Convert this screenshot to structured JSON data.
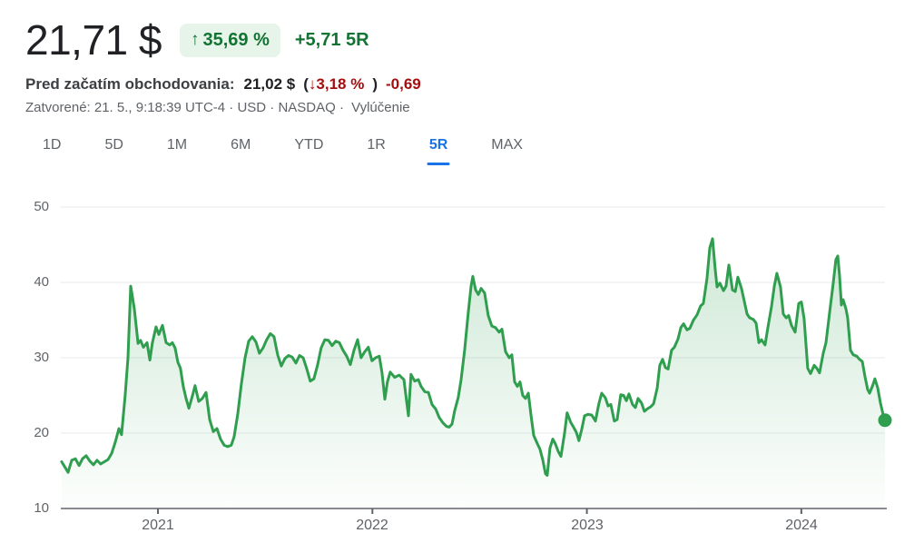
{
  "header": {
    "price": "21,71 $",
    "change_badge": {
      "arrow": "↑",
      "percent": "35,69 %"
    },
    "change_abs": "+5,71 5R",
    "premarket": {
      "label": "Pred začatím obchodovania:",
      "price": "21,02 $",
      "paren_open": "(",
      "arrow": "↓",
      "percent": "3,18 %",
      "paren_close": ")",
      "change": "-0,69"
    },
    "closed_info": "Zatvorené: 21. 5., 9:18:39 UTC-4 · USD · NASDAQ ·",
    "disclaimer": "Vylúčenie"
  },
  "tabs": {
    "items": [
      "1D",
      "5D",
      "1M",
      "6M",
      "YTD",
      "1R",
      "5R",
      "MAX"
    ],
    "active_label": "5R"
  },
  "colors": {
    "accent_blue": "#1a73e8",
    "green_text": "#137333",
    "badge_bg": "#e6f4ea",
    "red_text": "#a50e0e",
    "primary_text": "#202124",
    "secondary_text": "#5f6368"
  },
  "chart_data": {
    "type": "area",
    "title": "",
    "xlabel": "",
    "ylabel": "",
    "legend": false,
    "grid": true,
    "line_color": "#2f9e4f",
    "fill_color_rgb": "47,158,79",
    "grid_color": "#e8eaed",
    "axis_color": "#878b8f",
    "tick_color": "#5f6368",
    "ylim": [
      10,
      50
    ],
    "xlim": [
      2020.547,
      2024.39
    ],
    "y_ticks": [
      50,
      40,
      30,
      20,
      10
    ],
    "x_ticks": [
      2021,
      2022,
      2023,
      2024
    ],
    "y_tick_labels": [
      "50",
      "40",
      "30",
      "20",
      "10"
    ],
    "x_tick_labels": [
      "2021",
      "2022",
      "2023",
      "2024"
    ],
    "end_value": 21.71,
    "points": [
      [
        2020.551,
        16.2
      ],
      [
        2020.568,
        15.4
      ],
      [
        2020.581,
        14.8
      ],
      [
        2020.598,
        16.4
      ],
      [
        2020.615,
        16.6
      ],
      [
        2020.632,
        15.7
      ],
      [
        2020.648,
        16.6
      ],
      [
        2020.665,
        17.0
      ],
      [
        2020.682,
        16.3
      ],
      [
        2020.699,
        15.8
      ],
      [
        2020.716,
        16.4
      ],
      [
        2020.733,
        15.9
      ],
      [
        2020.75,
        16.2
      ],
      [
        2020.767,
        16.5
      ],
      [
        2020.784,
        17.3
      ],
      [
        2020.801,
        18.8
      ],
      [
        2020.818,
        20.6
      ],
      [
        2020.83,
        19.8
      ],
      [
        2020.847,
        25.0
      ],
      [
        2020.86,
        30.0
      ],
      [
        2020.873,
        39.5
      ],
      [
        2020.89,
        36.5
      ],
      [
        2020.907,
        31.9
      ],
      [
        2020.919,
        32.3
      ],
      [
        2020.932,
        31.4
      ],
      [
        2020.949,
        32.0
      ],
      [
        2020.962,
        29.7
      ],
      [
        2020.974,
        32.0
      ],
      [
        2020.991,
        34.1
      ],
      [
        2021.004,
        33.1
      ],
      [
        2021.021,
        34.3
      ],
      [
        2021.038,
        32.0
      ],
      [
        2021.055,
        31.7
      ],
      [
        2021.067,
        32.0
      ],
      [
        2021.08,
        31.3
      ],
      [
        2021.093,
        29.4
      ],
      [
        2021.105,
        28.6
      ],
      [
        2021.118,
        26.2
      ],
      [
        2021.131,
        24.6
      ],
      [
        2021.144,
        23.3
      ],
      [
        2021.161,
        25.0
      ],
      [
        2021.173,
        26.3
      ],
      [
        2021.19,
        24.2
      ],
      [
        2021.207,
        24.6
      ],
      [
        2021.224,
        25.4
      ],
      [
        2021.241,
        21.8
      ],
      [
        2021.258,
        20.2
      ],
      [
        2021.275,
        20.6
      ],
      [
        2021.292,
        19.2
      ],
      [
        2021.309,
        18.4
      ],
      [
        2021.325,
        18.2
      ],
      [
        2021.342,
        18.4
      ],
      [
        2021.355,
        19.5
      ],
      [
        2021.372,
        22.5
      ],
      [
        2021.389,
        26.5
      ],
      [
        2021.406,
        30.0
      ],
      [
        2021.423,
        32.2
      ],
      [
        2021.44,
        32.8
      ],
      [
        2021.457,
        32.1
      ],
      [
        2021.473,
        30.6
      ],
      [
        2021.49,
        31.3
      ],
      [
        2021.507,
        32.4
      ],
      [
        2021.524,
        33.2
      ],
      [
        2021.541,
        32.8
      ],
      [
        2021.558,
        30.4
      ],
      [
        2021.575,
        28.9
      ],
      [
        2021.592,
        29.9
      ],
      [
        2021.609,
        30.3
      ],
      [
        2021.626,
        30.1
      ],
      [
        2021.643,
        29.3
      ],
      [
        2021.66,
        30.3
      ],
      [
        2021.677,
        30.0
      ],
      [
        2021.693,
        28.6
      ],
      [
        2021.71,
        26.9
      ],
      [
        2021.727,
        27.2
      ],
      [
        2021.744,
        29.0
      ],
      [
        2021.761,
        31.3
      ],
      [
        2021.778,
        32.4
      ],
      [
        2021.795,
        32.3
      ],
      [
        2021.812,
        31.6
      ],
      [
        2021.829,
        32.2
      ],
      [
        2021.846,
        32.0
      ],
      [
        2021.863,
        31.0
      ],
      [
        2021.88,
        30.2
      ],
      [
        2021.897,
        29.1
      ],
      [
        2021.914,
        31.0
      ],
      [
        2021.931,
        32.4
      ],
      [
        2021.947,
        30.0
      ],
      [
        2021.964,
        30.8
      ],
      [
        2021.981,
        31.4
      ],
      [
        2021.998,
        29.6
      ],
      [
        2022.015,
        30.0
      ],
      [
        2022.032,
        30.2
      ],
      [
        2022.045,
        28.0
      ],
      [
        2022.058,
        24.5
      ],
      [
        2022.07,
        26.8
      ],
      [
        2022.083,
        28.1
      ],
      [
        2022.104,
        27.4
      ],
      [
        2022.125,
        27.7
      ],
      [
        2022.147,
        27.1
      ],
      [
        2022.168,
        22.3
      ],
      [
        2022.18,
        27.8
      ],
      [
        2022.197,
        26.9
      ],
      [
        2022.214,
        27.1
      ],
      [
        2022.227,
        26.2
      ],
      [
        2022.244,
        25.5
      ],
      [
        2022.261,
        25.4
      ],
      [
        2022.278,
        23.8
      ],
      [
        2022.295,
        23.2
      ],
      [
        2022.311,
        22.1
      ],
      [
        2022.328,
        21.4
      ],
      [
        2022.345,
        20.9
      ],
      [
        2022.358,
        20.8
      ],
      [
        2022.371,
        21.2
      ],
      [
        2022.384,
        23.0
      ],
      [
        2022.4,
        24.7
      ],
      [
        2022.413,
        27.0
      ],
      [
        2022.43,
        31.0
      ],
      [
        2022.447,
        36.0
      ],
      [
        2022.46,
        39.5
      ],
      [
        2022.468,
        40.8
      ],
      [
        2022.481,
        39.0
      ],
      [
        2022.494,
        38.4
      ],
      [
        2022.507,
        39.2
      ],
      [
        2022.523,
        38.6
      ],
      [
        2022.54,
        35.6
      ],
      [
        2022.557,
        34.2
      ],
      [
        2022.574,
        34.0
      ],
      [
        2022.591,
        33.4
      ],
      [
        2022.604,
        33.8
      ],
      [
        2022.621,
        30.8
      ],
      [
        2022.638,
        30.0
      ],
      [
        2022.65,
        30.4
      ],
      [
        2022.663,
        26.8
      ],
      [
        2022.676,
        26.2
      ],
      [
        2022.688,
        26.8
      ],
      [
        2022.701,
        25.0
      ],
      [
        2022.714,
        24.6
      ],
      [
        2022.727,
        25.3
      ],
      [
        2022.739,
        22.5
      ],
      [
        2022.752,
        19.7
      ],
      [
        2022.769,
        18.6
      ],
      [
        2022.781,
        17.9
      ],
      [
        2022.794,
        16.5
      ],
      [
        2022.807,
        14.6
      ],
      [
        2022.815,
        14.4
      ],
      [
        2022.828,
        18.0
      ],
      [
        2022.841,
        19.2
      ],
      [
        2022.853,
        18.6
      ],
      [
        2022.866,
        17.6
      ],
      [
        2022.879,
        16.9
      ],
      [
        2022.896,
        20.0
      ],
      [
        2022.908,
        22.7
      ],
      [
        2022.925,
        21.4
      ],
      [
        2022.938,
        20.8
      ],
      [
        2022.951,
        20.1
      ],
      [
        2022.963,
        19.0
      ],
      [
        2022.976,
        20.5
      ],
      [
        2022.989,
        22.3
      ],
      [
        2023.006,
        22.5
      ],
      [
        2023.023,
        22.4
      ],
      [
        2023.04,
        21.6
      ],
      [
        2023.056,
        23.9
      ],
      [
        2023.069,
        25.3
      ],
      [
        2023.086,
        24.7
      ],
      [
        2023.099,
        23.6
      ],
      [
        2023.112,
        23.8
      ],
      [
        2023.128,
        21.6
      ],
      [
        2023.141,
        21.8
      ],
      [
        2023.158,
        25.1
      ],
      [
        2023.171,
        25.0
      ],
      [
        2023.184,
        24.3
      ],
      [
        2023.196,
        25.2
      ],
      [
        2023.213,
        23.8
      ],
      [
        2023.226,
        23.4
      ],
      [
        2023.239,
        24.6
      ],
      [
        2023.255,
        24.0
      ],
      [
        2023.268,
        22.9
      ],
      [
        2023.281,
        23.2
      ],
      [
        2023.298,
        23.5
      ],
      [
        2023.311,
        23.9
      ],
      [
        2023.328,
        26.0
      ],
      [
        2023.34,
        29.0
      ],
      [
        2023.353,
        29.8
      ],
      [
        2023.366,
        28.7
      ],
      [
        2023.379,
        28.5
      ],
      [
        2023.395,
        31.0
      ],
      [
        2023.408,
        31.4
      ],
      [
        2023.425,
        32.5
      ],
      [
        2023.438,
        34.0
      ],
      [
        2023.451,
        34.5
      ],
      [
        2023.467,
        33.7
      ],
      [
        2023.48,
        33.9
      ],
      [
        2023.497,
        35.0
      ],
      [
        2023.514,
        35.7
      ],
      [
        2023.531,
        36.9
      ],
      [
        2023.543,
        37.2
      ],
      [
        2023.56,
        40.5
      ],
      [
        2023.573,
        44.6
      ],
      [
        2023.586,
        45.8
      ],
      [
        2023.599,
        41.6
      ],
      [
        2023.607,
        39.4
      ],
      [
        2023.62,
        39.9
      ],
      [
        2023.637,
        38.9
      ],
      [
        2023.649,
        39.5
      ],
      [
        2023.662,
        42.3
      ],
      [
        2023.679,
        39.0
      ],
      [
        2023.692,
        38.8
      ],
      [
        2023.704,
        40.7
      ],
      [
        2023.721,
        39.2
      ],
      [
        2023.734,
        37.5
      ],
      [
        2023.747,
        35.8
      ],
      [
        2023.759,
        35.3
      ],
      [
        2023.776,
        35.1
      ],
      [
        2023.789,
        34.6
      ],
      [
        2023.802,
        32.0
      ],
      [
        2023.814,
        32.4
      ],
      [
        2023.831,
        31.7
      ],
      [
        2023.844,
        34.0
      ],
      [
        2023.861,
        36.8
      ],
      [
        2023.874,
        39.5
      ],
      [
        2023.886,
        41.2
      ],
      [
        2023.903,
        39.4
      ],
      [
        2023.916,
        35.8
      ],
      [
        2023.929,
        35.3
      ],
      [
        2023.941,
        35.6
      ],
      [
        2023.954,
        34.3
      ],
      [
        2023.971,
        33.4
      ],
      [
        2023.988,
        37.2
      ],
      [
        2024.0,
        37.4
      ],
      [
        2024.013,
        35.2
      ],
      [
        2024.03,
        28.6
      ],
      [
        2024.043,
        27.9
      ],
      [
        2024.06,
        29.0
      ],
      [
        2024.072,
        28.6
      ],
      [
        2024.085,
        28.0
      ],
      [
        2024.102,
        30.6
      ],
      [
        2024.115,
        32.0
      ],
      [
        2024.132,
        36.0
      ],
      [
        2024.149,
        40.0
      ],
      [
        2024.161,
        43.0
      ],
      [
        2024.17,
        43.5
      ],
      [
        2024.178,
        41.0
      ],
      [
        2024.187,
        37.0
      ],
      [
        2024.195,
        37.7
      ],
      [
        2024.208,
        36.5
      ],
      [
        2024.216,
        35.3
      ],
      [
        2024.229,
        31.0
      ],
      [
        2024.242,
        30.4
      ],
      [
        2024.259,
        30.2
      ],
      [
        2024.271,
        29.8
      ],
      [
        2024.284,
        29.5
      ],
      [
        2024.297,
        27.5
      ],
      [
        2024.309,
        25.8
      ],
      [
        2024.318,
        25.3
      ],
      [
        2024.331,
        26.2
      ],
      [
        2024.343,
        27.2
      ],
      [
        2024.356,
        26.0
      ],
      [
        2024.369,
        24.0
      ],
      [
        2024.381,
        22.5
      ],
      [
        2024.39,
        21.71
      ]
    ]
  }
}
